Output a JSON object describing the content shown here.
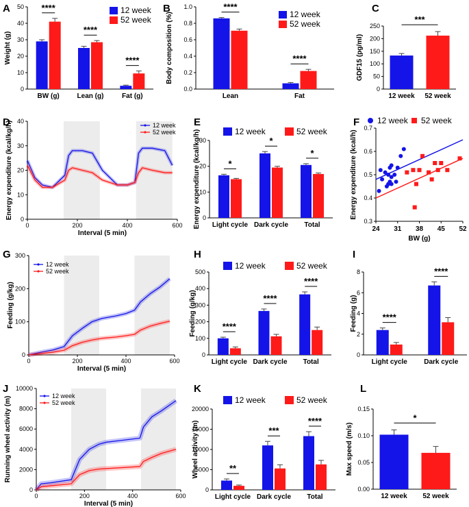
{
  "colors": {
    "blue": "#1414e8",
    "red": "#ff1a1a",
    "shade": "#ececec"
  },
  "chart_data": [
    {
      "panel": "A",
      "type": "bar",
      "categories": [
        "BW (g)",
        "Lean (g)",
        "Fat (g)"
      ],
      "series": [
        {
          "name": "12 week",
          "values": [
            29,
            25,
            2
          ]
        },
        {
          "name": "52 week",
          "values": [
            41,
            28.5,
            9.5
          ]
        }
      ],
      "errors": [
        [
          1,
          1,
          0.4
        ],
        [
          2,
          1,
          1.5
        ]
      ],
      "ylabel": "Weight (g)",
      "ylim": [
        0,
        50
      ],
      "yticks": [
        "0",
        "10",
        "20",
        "30",
        "40",
        "50"
      ],
      "legend": [
        "12 week",
        "52 week"
      ],
      "sig": [
        "****",
        "****",
        "****"
      ]
    },
    {
      "panel": "B",
      "type": "bar",
      "categories": [
        "Lean",
        "Fat"
      ],
      "series": [
        {
          "name": "12 week",
          "values": [
            0.86,
            0.07
          ]
        },
        {
          "name": "52 week",
          "values": [
            0.71,
            0.22
          ]
        }
      ],
      "errors": [
        [
          0.01,
          0.01
        ],
        [
          0.02,
          0.02
        ]
      ],
      "ylabel": "Body composition (%)",
      "ylim": [
        0,
        1
      ],
      "yticks": [
        "0.0",
        "0.2",
        "0.4",
        "0.6",
        "0.8",
        "1.0"
      ],
      "legend": [
        "12 week",
        "52 week"
      ],
      "sig": [
        "****",
        "****"
      ]
    },
    {
      "panel": "C",
      "type": "bar",
      "categories": [
        "12 week",
        "52 week"
      ],
      "values": [
        133,
        212
      ],
      "errors": [
        8,
        16
      ],
      "ylabel": "GDF15 (pg/ml)",
      "ylim": [
        0,
        250
      ],
      "yticks": [
        "0",
        "50",
        "100",
        "150",
        "200",
        "250"
      ],
      "sig": [
        "***"
      ]
    },
    {
      "panel": "D",
      "type": "line",
      "xlabel": "Interval (5 min)",
      "ylabel": "Energy expenditure  (kcal/kg/h)",
      "xlim": [
        0,
        600
      ],
      "ylim": [
        0,
        40
      ],
      "xticks": [
        "0",
        "200",
        "400",
        "600"
      ],
      "yticks": [
        "0",
        "10",
        "20",
        "30",
        "40"
      ],
      "shade": [
        [
          145,
          290
        ],
        [
          435,
          580
        ]
      ],
      "legend": [
        "12 week",
        "52 week"
      ],
      "series": [
        {
          "name": "12 week",
          "x": [
            0,
            30,
            60,
            100,
            150,
            165,
            180,
            220,
            260,
            300,
            330,
            360,
            400,
            430,
            445,
            460,
            500,
            550,
            580
          ],
          "y": [
            24,
            17,
            14,
            13,
            18,
            26,
            28,
            28,
            27,
            20,
            17,
            14,
            14,
            15,
            27,
            29,
            29,
            28,
            22
          ]
        },
        {
          "name": "52 week",
          "x": [
            0,
            30,
            60,
            100,
            150,
            165,
            180,
            220,
            260,
            300,
            330,
            360,
            400,
            430,
            445,
            460,
            500,
            550,
            580
          ],
          "y": [
            22,
            16,
            13,
            13,
            16,
            20,
            21,
            20,
            19,
            16,
            15,
            14,
            14,
            15,
            19,
            21,
            20,
            19,
            19
          ]
        }
      ]
    },
    {
      "panel": "E",
      "type": "bar",
      "categories": [
        "Light cycle",
        "Dark cycle",
        "Total"
      ],
      "series": [
        {
          "name": "12 week",
          "values": [
            16.5,
            25,
            20.5
          ]
        },
        {
          "name": "52 week",
          "values": [
            15,
            19.5,
            17
          ]
        }
      ],
      "errors": [
        [
          0.4,
          0.7,
          0.5
        ],
        [
          0.3,
          0.5,
          0.4
        ]
      ],
      "ylabel": "Energy expenditure (kcal/kg/h)",
      "ylim": [
        0,
        30
      ],
      "yticks": [
        "0",
        "10",
        "20",
        "30"
      ],
      "legend": [
        "12 week",
        "52 week"
      ],
      "sig": [
        "*",
        "*",
        "*"
      ]
    },
    {
      "panel": "F",
      "type": "scatter",
      "xlabel": "BW (g)",
      "ylabel": "Energy expenditure (kcal/h)",
      "xlim": [
        24,
        52
      ],
      "ylim": [
        0.3,
        0.7
      ],
      "xticks": [
        "24",
        "31",
        "38",
        "45",
        "52"
      ],
      "yticks": [
        "0.3",
        "0.4",
        "0.5",
        "0.6",
        "0.7"
      ],
      "legend": [
        "12 week",
        "52 week"
      ],
      "series": [
        {
          "name": "12 week",
          "x": [
            25,
            25.5,
            26,
            27,
            27.5,
            28,
            28,
            28.5,
            28.5,
            29,
            29,
            29,
            30,
            30.5,
            31,
            32,
            33
          ],
          "y": [
            0.43,
            0.52,
            0.48,
            0.51,
            0.45,
            0.5,
            0.46,
            0.53,
            0.47,
            0.46,
            0.54,
            0.49,
            0.5,
            0.47,
            0.53,
            0.58,
            0.61
          ],
          "fit": [
            [
              24,
              0.48
            ],
            [
              52,
              0.65
            ]
          ]
        },
        {
          "name": "52 week",
          "x": [
            34,
            36,
            36.5,
            37,
            38,
            39,
            41,
            42,
            43,
            44,
            45,
            47,
            51
          ],
          "y": [
            0.51,
            0.52,
            0.36,
            0.46,
            0.52,
            0.58,
            0.51,
            0.48,
            0.55,
            0.52,
            0.55,
            0.52,
            0.57
          ],
          "fit": [
            [
              24,
              0.4
            ],
            [
              52,
              0.57
            ]
          ]
        }
      ]
    },
    {
      "panel": "G",
      "type": "line",
      "xlabel": "Interval (5 min)",
      "ylabel": "Feeding (g/kg)",
      "xlim": [
        0,
        600
      ],
      "ylim": [
        0,
        300
      ],
      "xticks": [
        "0",
        "200",
        "400",
        "600"
      ],
      "yticks": [
        "0",
        "100",
        "200",
        "300"
      ],
      "shade": [
        [
          145,
          290
        ],
        [
          435,
          580
        ]
      ],
      "legend": [
        "12 week",
        "52 week"
      ],
      "series": [
        {
          "name": "12 week",
          "x": [
            0,
            50,
            100,
            145,
            180,
            220,
            260,
            300,
            360,
            400,
            435,
            460,
            500,
            540,
            580
          ],
          "y": [
            0,
            8,
            15,
            25,
            58,
            80,
            100,
            110,
            118,
            125,
            135,
            160,
            185,
            205,
            230
          ]
        },
        {
          "name": "52 week",
          "x": [
            0,
            50,
            100,
            145,
            180,
            220,
            260,
            300,
            360,
            400,
            435,
            460,
            500,
            540,
            580
          ],
          "y": [
            0,
            4,
            8,
            14,
            28,
            38,
            45,
            50,
            54,
            58,
            62,
            75,
            87,
            95,
            102
          ]
        }
      ]
    },
    {
      "panel": "H",
      "type": "bar",
      "categories": [
        "Light cycle",
        "Dark cycle",
        "Total"
      ],
      "series": [
        {
          "name": "12 week",
          "values": [
            100,
            265,
            365
          ]
        },
        {
          "name": "52 week",
          "values": [
            40,
            112,
            150
          ]
        }
      ],
      "errors": [
        [
          7,
          12,
          15
        ],
        [
          8,
          12,
          18
        ]
      ],
      "ylabel": "Feeding (g/kg)",
      "ylim": [
        0,
        500
      ],
      "yticks": [
        "0",
        "100",
        "200",
        "300",
        "400",
        "500"
      ],
      "legend": [
        "12 week",
        "52 week"
      ],
      "sig": [
        "****",
        "****",
        "****"
      ]
    },
    {
      "panel": "I",
      "type": "bar",
      "categories": [
        "Light cycle",
        "Dark cycle"
      ],
      "series": [
        {
          "name": "12 week",
          "values": [
            2.4,
            6.7
          ]
        },
        {
          "name": "52 week",
          "values": [
            1.0,
            3.15
          ]
        }
      ],
      "errors": [
        [
          0.2,
          0.35
        ],
        [
          0.2,
          0.45
        ]
      ],
      "ylabel": "Feeding (g)",
      "ylim": [
        0,
        8
      ],
      "yticks": [
        "0",
        "2",
        "4",
        "6",
        "8"
      ],
      "sig": [
        "****",
        "****"
      ]
    },
    {
      "panel": "J",
      "type": "line",
      "xlabel": "Interval (5 min)",
      "ylabel": "Running wheel activity (m)",
      "xlim": [
        0,
        600
      ],
      "ylim": [
        0,
        10000
      ],
      "xticks": [
        "0",
        "200",
        "400",
        "600"
      ],
      "yticks": [
        "0",
        "2000",
        "4000",
        "6000",
        "8000",
        "10000"
      ],
      "shade": [
        [
          145,
          290
        ],
        [
          435,
          580
        ]
      ],
      "legend": [
        "12 week",
        "52 week"
      ],
      "series": [
        {
          "name": "12 week",
          "x": [
            0,
            20,
            60,
            145,
            180,
            220,
            260,
            290,
            360,
            430,
            445,
            480,
            520,
            580
          ],
          "y": [
            0,
            600,
            700,
            1000,
            3000,
            4000,
            4500,
            4700,
            4900,
            5100,
            6200,
            7200,
            7800,
            8800
          ]
        },
        {
          "name": "52 week",
          "x": [
            0,
            20,
            60,
            145,
            180,
            220,
            260,
            290,
            360,
            430,
            445,
            480,
            520,
            580
          ],
          "y": [
            0,
            300,
            400,
            600,
            1500,
            1900,
            2050,
            2100,
            2200,
            2300,
            2800,
            3200,
            3600,
            4000
          ]
        }
      ]
    },
    {
      "panel": "K",
      "type": "bar",
      "categories": [
        "Light cycle",
        "Dark cycle",
        "Total"
      ],
      "series": [
        {
          "name": "12 week",
          "values": [
            2300,
            11000,
            13300
          ]
        },
        {
          "name": "52 week",
          "values": [
            1000,
            5300,
            6300
          ]
        }
      ],
      "errors": [
        [
          400,
          1000,
          1100
        ],
        [
          200,
          900,
          1000
        ]
      ],
      "ylabel": "Wheel activity  (m)",
      "ylim": [
        0,
        20000
      ],
      "yticks": [
        "0",
        "5000",
        "10000",
        "15000",
        "20000"
      ],
      "legend": [
        "12 week",
        "52 week"
      ],
      "sig": [
        "**",
        "***",
        "****"
      ]
    },
    {
      "panel": "L",
      "type": "bar",
      "categories": [
        "12 week",
        "52 week"
      ],
      "values": [
        0.102,
        0.068
      ],
      "errors": [
        0.009,
        0.012
      ],
      "ylabel": "Max speed (m/s)",
      "ylim": [
        0,
        0.15
      ],
      "yticks": [
        "0.00",
        "0.05",
        "0.10",
        "0.15"
      ],
      "sig": [
        "*"
      ]
    }
  ]
}
